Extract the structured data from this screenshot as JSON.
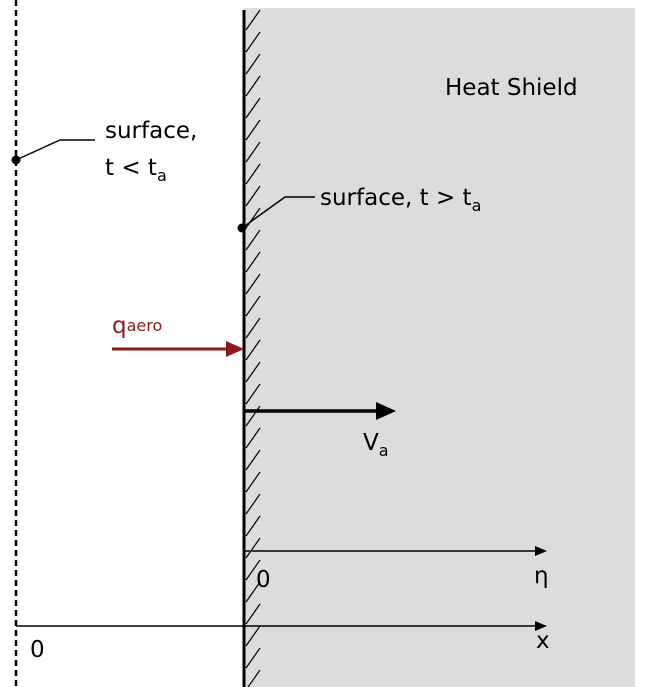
{
  "heat_shield": "Heat Shield",
  "initial_surface": {
    "line1": "surface,",
    "line2": "t < t",
    "sub": "a"
  },
  "current_surface": {
    "text": "surface, t > t",
    "sub": "a"
  },
  "heat_flux": {
    "text": "q",
    "sub": "aero"
  },
  "velocity": {
    "text": "V",
    "sub": "a"
  },
  "axes": [
    {
      "origin": "0",
      "label": "η"
    },
    {
      "origin": "0",
      "label": "x"
    }
  ]
}
